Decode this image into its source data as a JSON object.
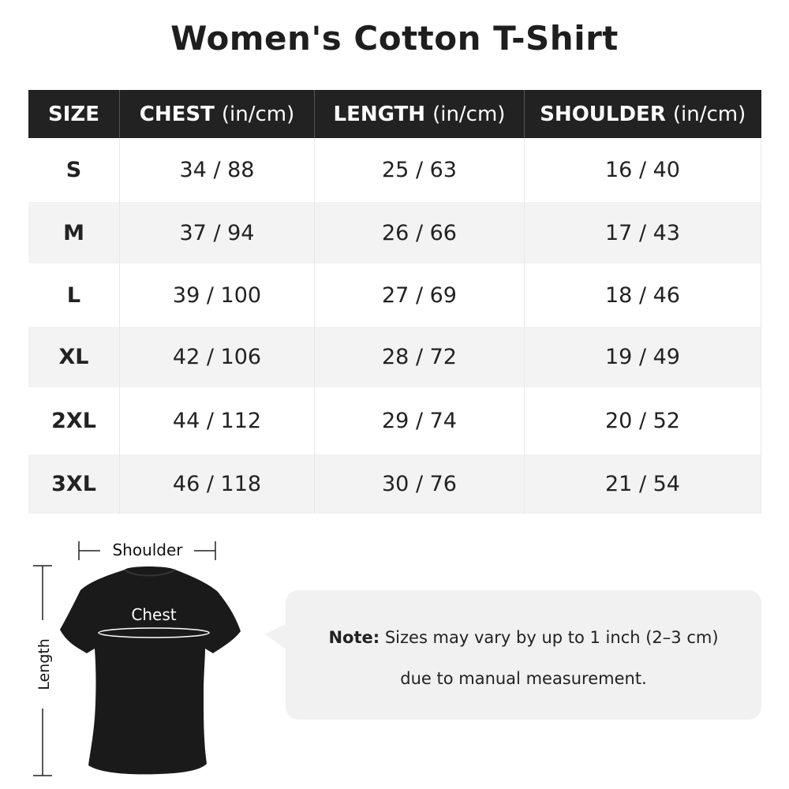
{
  "title": "Women's Cotton T-Shirt",
  "table": {
    "headers": [
      {
        "label": "SIZE",
        "unit": ""
      },
      {
        "label": "CHEST",
        "unit": "(in/cm)"
      },
      {
        "label": "LENGTH",
        "unit": "(in/cm)"
      },
      {
        "label": "SHOULDER",
        "unit": "(in/cm)"
      }
    ],
    "rows": [
      [
        "S",
        "34 / 88",
        "25 / 63",
        "16 / 40"
      ],
      [
        "M",
        "37 / 94",
        "26 / 66",
        "17 / 43"
      ],
      [
        "L",
        "39 / 100",
        "27 / 69",
        "18 / 46"
      ],
      [
        "XL",
        "42 / 106",
        "28 / 72",
        "19 / 49"
      ],
      [
        "2XL",
        "44 / 112",
        "29 / 74",
        "20 / 52"
      ],
      [
        "3XL",
        "46 / 118",
        "30 / 76",
        "21 / 54"
      ]
    ]
  },
  "diagram": {
    "shoulder_label": "Shoulder",
    "chest_label": "Chest",
    "length_label": "Length",
    "shirt_color": "#1a1a1a"
  },
  "note": {
    "prefix": "Note:",
    "line1": " Sizes may vary by up to 1 inch (2–3 cm)",
    "line2": "due to manual measurement."
  }
}
